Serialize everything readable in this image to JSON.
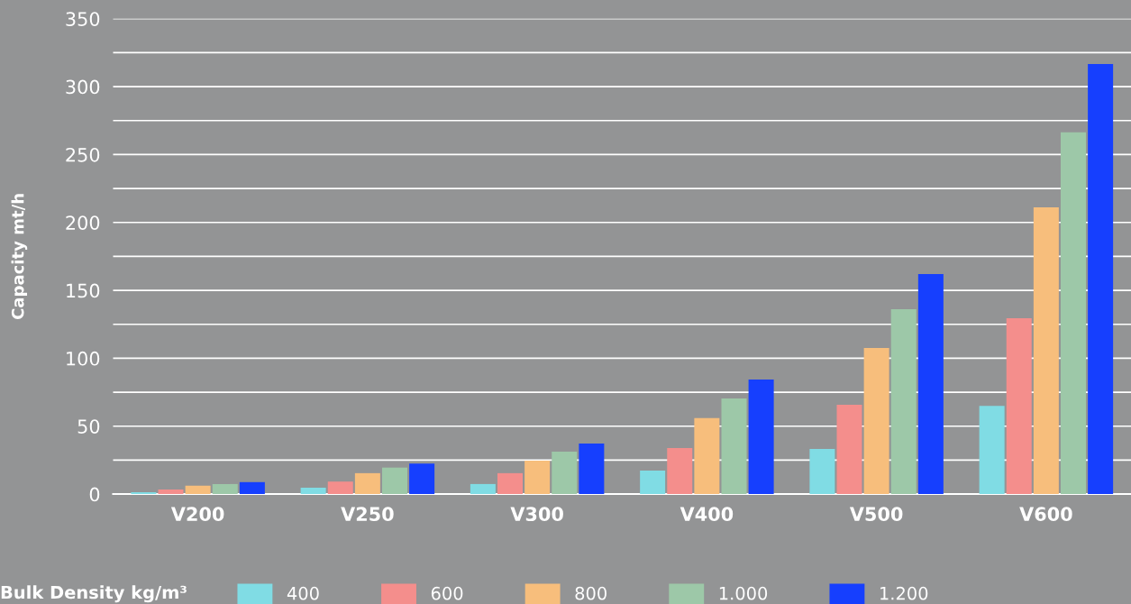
{
  "chart_data": {
    "type": "bar",
    "ylabel": "Capacity mt/h",
    "legend_title": "Bulk Density kg/m³",
    "categories": [
      "V200",
      "V250",
      "V300",
      "V400",
      "V500",
      "V600"
    ],
    "series": [
      {
        "name": "400",
        "color": "#80dce4",
        "values": [
          1.4,
          4.7,
          7.4,
          17.3,
          33.2,
          65
        ]
      },
      {
        "name": "600",
        "color": "#f48e8c",
        "values": [
          3.3,
          9.2,
          15.4,
          33.9,
          65.7,
          129.5
        ]
      },
      {
        "name": "800",
        "color": "#f7be7c",
        "values": [
          6.2,
          15.4,
          24.6,
          56,
          107.6,
          211.2
        ]
      },
      {
        "name": "1.000",
        "color": "#9dc8a8",
        "values": [
          7.4,
          19.5,
          31.3,
          70.4,
          136.1,
          266.3
        ]
      },
      {
        "name": "1.200",
        "color": "#163ffe",
        "values": [
          8.8,
          22.5,
          37.2,
          84.3,
          162,
          316.7
        ]
      }
    ],
    "ylim": [
      0,
      350
    ],
    "yticks": [
      0,
      {
        "value": 25,
        "label": null
      },
      50,
      {
        "value": 75,
        "label": null
      },
      100,
      {
        "value": 125,
        "label": null
      },
      150,
      {
        "value": 175,
        "label": null
      },
      200,
      {
        "value": 225,
        "label": null
      },
      250,
      {
        "value": 275,
        "label": null
      },
      300,
      {
        "value": 325,
        "label": null
      },
      350
    ],
    "grid": "y",
    "legend": "bottom"
  }
}
